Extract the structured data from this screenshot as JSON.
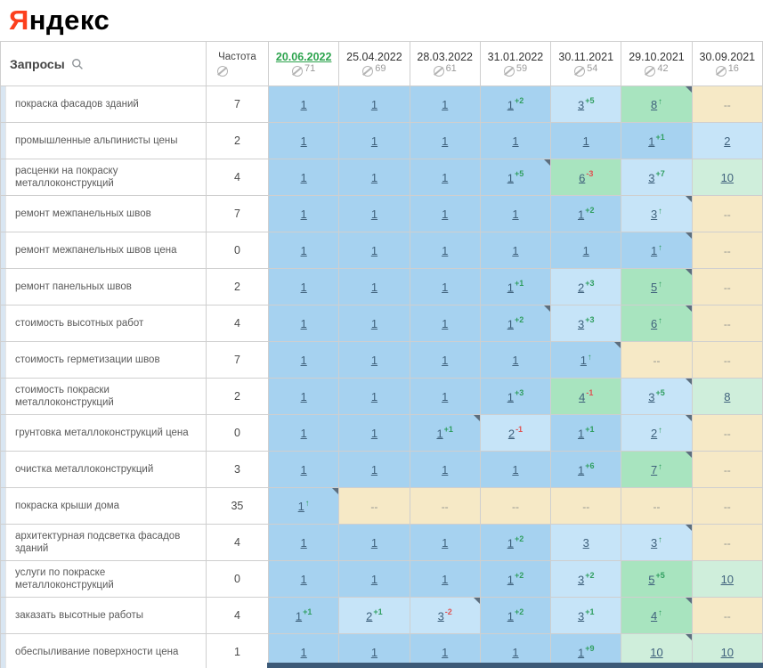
{
  "logo": {
    "ya": "Я",
    "rest": "ндекс"
  },
  "table": {
    "queries_header": "Запросы",
    "freq_header": "Частота",
    "columns": [
      {
        "date": "20.06.2022",
        "metric": "71",
        "active": true
      },
      {
        "date": "25.04.2022",
        "metric": "69",
        "active": false
      },
      {
        "date": "28.03.2022",
        "metric": "61",
        "active": false
      },
      {
        "date": "31.01.2022",
        "metric": "59",
        "active": false
      },
      {
        "date": "30.11.2021",
        "metric": "54",
        "active": false
      },
      {
        "date": "29.10.2021",
        "metric": "42",
        "active": false
      },
      {
        "date": "30.09.2021",
        "metric": "16",
        "active": false
      }
    ],
    "rows": [
      {
        "query": "покраска фасадов зданий",
        "freq": "7",
        "cells": [
          {
            "v": "1",
            "bg": "b"
          },
          {
            "v": "1",
            "bg": "b"
          },
          {
            "v": "1",
            "bg": "b"
          },
          {
            "v": "1",
            "sup": "+2",
            "bg": "b"
          },
          {
            "v": "3",
            "sup": "+5",
            "bg": "lb"
          },
          {
            "v": "8",
            "arrow": true,
            "bg": "g",
            "corner": true
          },
          {
            "v": "--",
            "bg": "n"
          }
        ]
      },
      {
        "query": "промышленные альпинисты цены",
        "freq": "2",
        "cells": [
          {
            "v": "1",
            "bg": "b"
          },
          {
            "v": "1",
            "bg": "b"
          },
          {
            "v": "1",
            "bg": "b"
          },
          {
            "v": "1",
            "bg": "b"
          },
          {
            "v": "1",
            "bg": "b"
          },
          {
            "v": "1",
            "sup": "+1",
            "bg": "b"
          },
          {
            "v": "2",
            "bg": "lb"
          }
        ]
      },
      {
        "query": "расценки на покраску металлоконструкций",
        "freq": "4",
        "cells": [
          {
            "v": "1",
            "bg": "b"
          },
          {
            "v": "1",
            "bg": "b"
          },
          {
            "v": "1",
            "bg": "b"
          },
          {
            "v": "1",
            "sup": "+5",
            "bg": "b",
            "corner": true
          },
          {
            "v": "6",
            "sup": "-3",
            "bg": "g"
          },
          {
            "v": "3",
            "sup": "+7",
            "bg": "lb"
          },
          {
            "v": "10",
            "bg": "gp"
          }
        ]
      },
      {
        "query": "ремонт межпанельных швов",
        "freq": "7",
        "cells": [
          {
            "v": "1",
            "bg": "b"
          },
          {
            "v": "1",
            "bg": "b"
          },
          {
            "v": "1",
            "bg": "b"
          },
          {
            "v": "1",
            "bg": "b"
          },
          {
            "v": "1",
            "sup": "+2",
            "bg": "b"
          },
          {
            "v": "3",
            "arrow": true,
            "bg": "lb",
            "corner": true
          },
          {
            "v": "--",
            "bg": "n"
          }
        ]
      },
      {
        "query": "ремонт межпанельных швов цена",
        "freq": "0",
        "cells": [
          {
            "v": "1",
            "bg": "b"
          },
          {
            "v": "1",
            "bg": "b"
          },
          {
            "v": "1",
            "bg": "b"
          },
          {
            "v": "1",
            "bg": "b"
          },
          {
            "v": "1",
            "bg": "b"
          },
          {
            "v": "1",
            "arrow": true,
            "bg": "b",
            "corner": true
          },
          {
            "v": "--",
            "bg": "n"
          }
        ]
      },
      {
        "query": "ремонт панельных швов",
        "freq": "2",
        "cells": [
          {
            "v": "1",
            "bg": "b"
          },
          {
            "v": "1",
            "bg": "b"
          },
          {
            "v": "1",
            "bg": "b"
          },
          {
            "v": "1",
            "sup": "+1",
            "bg": "b"
          },
          {
            "v": "2",
            "sup": "+3",
            "bg": "lb"
          },
          {
            "v": "5",
            "arrow": true,
            "bg": "g",
            "corner": true
          },
          {
            "v": "--",
            "bg": "n"
          }
        ]
      },
      {
        "query": "стоимость высотных работ",
        "freq": "4",
        "cells": [
          {
            "v": "1",
            "bg": "b"
          },
          {
            "v": "1",
            "bg": "b"
          },
          {
            "v": "1",
            "bg": "b"
          },
          {
            "v": "1",
            "sup": "+2",
            "bg": "b",
            "corner": true
          },
          {
            "v": "3",
            "sup": "+3",
            "bg": "lb"
          },
          {
            "v": "6",
            "arrow": true,
            "bg": "g",
            "corner": true
          },
          {
            "v": "--",
            "bg": "n"
          }
        ]
      },
      {
        "query": "стоимость герметизации швов",
        "freq": "7",
        "cells": [
          {
            "v": "1",
            "bg": "b"
          },
          {
            "v": "1",
            "bg": "b"
          },
          {
            "v": "1",
            "bg": "b"
          },
          {
            "v": "1",
            "bg": "b"
          },
          {
            "v": "1",
            "arrow": true,
            "bg": "b",
            "corner": true
          },
          {
            "v": "--",
            "bg": "n"
          },
          {
            "v": "--",
            "bg": "n"
          }
        ]
      },
      {
        "query": "стоимость покраски металлоконструкций",
        "freq": "2",
        "cells": [
          {
            "v": "1",
            "bg": "b"
          },
          {
            "v": "1",
            "bg": "b"
          },
          {
            "v": "1",
            "bg": "b"
          },
          {
            "v": "1",
            "sup": "+3",
            "bg": "b"
          },
          {
            "v": "4",
            "sup": "-1",
            "bg": "g"
          },
          {
            "v": "3",
            "sup": "+5",
            "bg": "lb",
            "corner": true
          },
          {
            "v": "8",
            "bg": "gp"
          }
        ]
      },
      {
        "query": "грунтовка металлоконструкций цена",
        "freq": "0",
        "cells": [
          {
            "v": "1",
            "bg": "b"
          },
          {
            "v": "1",
            "bg": "b"
          },
          {
            "v": "1",
            "sup": "+1",
            "bg": "b",
            "corner": true
          },
          {
            "v": "2",
            "sup": "-1",
            "bg": "lb"
          },
          {
            "v": "1",
            "sup": "+1",
            "bg": "b"
          },
          {
            "v": "2",
            "arrow": true,
            "bg": "lb",
            "corner": true
          },
          {
            "v": "--",
            "bg": "n"
          }
        ]
      },
      {
        "query": "очистка металлоконструкций",
        "freq": "3",
        "cells": [
          {
            "v": "1",
            "bg": "b"
          },
          {
            "v": "1",
            "bg": "b"
          },
          {
            "v": "1",
            "bg": "b"
          },
          {
            "v": "1",
            "bg": "b"
          },
          {
            "v": "1",
            "sup": "+6",
            "bg": "b"
          },
          {
            "v": "7",
            "arrow": true,
            "bg": "g",
            "corner": true
          },
          {
            "v": "--",
            "bg": "n"
          }
        ]
      },
      {
        "query": "покраска крыши дома",
        "freq": "35",
        "cells": [
          {
            "v": "1",
            "arrow": true,
            "bg": "b",
            "corner": true
          },
          {
            "v": "--",
            "bg": "n"
          },
          {
            "v": "--",
            "bg": "n"
          },
          {
            "v": "--",
            "bg": "n"
          },
          {
            "v": "--",
            "bg": "n"
          },
          {
            "v": "--",
            "bg": "n"
          },
          {
            "v": "--",
            "bg": "n"
          }
        ]
      },
      {
        "query": "архитектурная подсветка фасадов зданий",
        "freq": "4",
        "cells": [
          {
            "v": "1",
            "bg": "b"
          },
          {
            "v": "1",
            "bg": "b"
          },
          {
            "v": "1",
            "bg": "b"
          },
          {
            "v": "1",
            "sup": "+2",
            "bg": "b"
          },
          {
            "v": "3",
            "bg": "lb"
          },
          {
            "v": "3",
            "arrow": true,
            "bg": "lb",
            "corner": true
          },
          {
            "v": "--",
            "bg": "n"
          }
        ]
      },
      {
        "query": "услуги по покраске металлоконструкций",
        "freq": "0",
        "cells": [
          {
            "v": "1",
            "bg": "b"
          },
          {
            "v": "1",
            "bg": "b"
          },
          {
            "v": "1",
            "bg": "b"
          },
          {
            "v": "1",
            "sup": "+2",
            "bg": "b"
          },
          {
            "v": "3",
            "sup": "+2",
            "bg": "lb"
          },
          {
            "v": "5",
            "sup": "+5",
            "bg": "g"
          },
          {
            "v": "10",
            "bg": "gp"
          }
        ]
      },
      {
        "query": "заказать высотные работы",
        "freq": "4",
        "cells": [
          {
            "v": "1",
            "sup": "+1",
            "bg": "b"
          },
          {
            "v": "2",
            "sup": "+1",
            "bg": "lb"
          },
          {
            "v": "3",
            "sup": "-2",
            "bg": "lb",
            "corner": true
          },
          {
            "v": "1",
            "sup": "+2",
            "bg": "b"
          },
          {
            "v": "3",
            "sup": "+1",
            "bg": "lb"
          },
          {
            "v": "4",
            "arrow": true,
            "bg": "g",
            "corner": true
          },
          {
            "v": "--",
            "bg": "n"
          }
        ]
      },
      {
        "query": "обеспыливание поверхности цена",
        "freq": "1",
        "cells": [
          {
            "v": "1",
            "bg": "b"
          },
          {
            "v": "1",
            "bg": "b"
          },
          {
            "v": "1",
            "bg": "b"
          },
          {
            "v": "1",
            "bg": "b"
          },
          {
            "v": "1",
            "sup": "+9",
            "bg": "b"
          },
          {
            "v": "10",
            "bg": "gp",
            "corner": true
          },
          {
            "v": "10",
            "bg": "gp"
          }
        ]
      }
    ]
  },
  "colors": {
    "logo_red": "#fc3f1d",
    "active_date_green": "#2da44e",
    "pos1_bg": "#a6d2f0",
    "pos23_bg": "#c6e4f8",
    "top10_bg": "#a8e4bf",
    "top10_pale_bg": "#cfeedb",
    "empty_bg": "#f6e9c6",
    "sup_up": "#2f9e5f",
    "sup_down": "#e05252",
    "scrollbar": "#3c5a78"
  }
}
